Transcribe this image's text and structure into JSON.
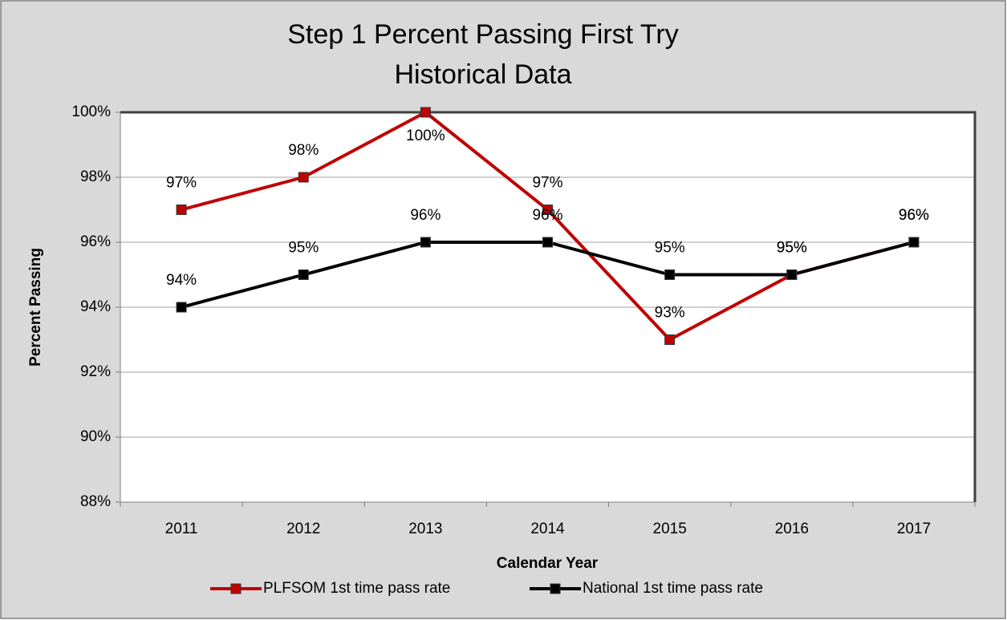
{
  "chart_data": {
    "type": "line",
    "title": [
      "Step 1 Percent Passing First Try",
      "Historical Data"
    ],
    "x_label": "Calendar Year",
    "y_label": "Percent Passing",
    "categories": [
      "2011",
      "2012",
      "2013",
      "2014",
      "2015",
      "2016",
      "2017"
    ],
    "series": [
      {
        "name": "PLFSOM 1st time pass rate",
        "color": "#c00000",
        "values": [
          97,
          98,
          100,
          97,
          93,
          95,
          96
        ],
        "value_labels": [
          "97%",
          "98%",
          "100%",
          "97%",
          "93%",
          "95%",
          "96%"
        ]
      },
      {
        "name": "National 1st time pass rate",
        "color": "#000000",
        "values": [
          94,
          95,
          96,
          96,
          95,
          95,
          96
        ],
        "value_labels": [
          "94%",
          "95%",
          "96%",
          "96%",
          "95%",
          "95%",
          "96%"
        ]
      }
    ],
    "ylim": [
      88,
      100
    ],
    "yticks": [
      {
        "value": 88,
        "label": "88%"
      },
      {
        "value": 90,
        "label": "90%"
      },
      {
        "value": 92,
        "label": "92%"
      },
      {
        "value": 94,
        "label": "94%"
      },
      {
        "value": 96,
        "label": "96%"
      },
      {
        "value": 98,
        "label": "98%"
      },
      {
        "value": 100,
        "label": "100%"
      }
    ],
    "grid": true,
    "legend": "bottom"
  }
}
